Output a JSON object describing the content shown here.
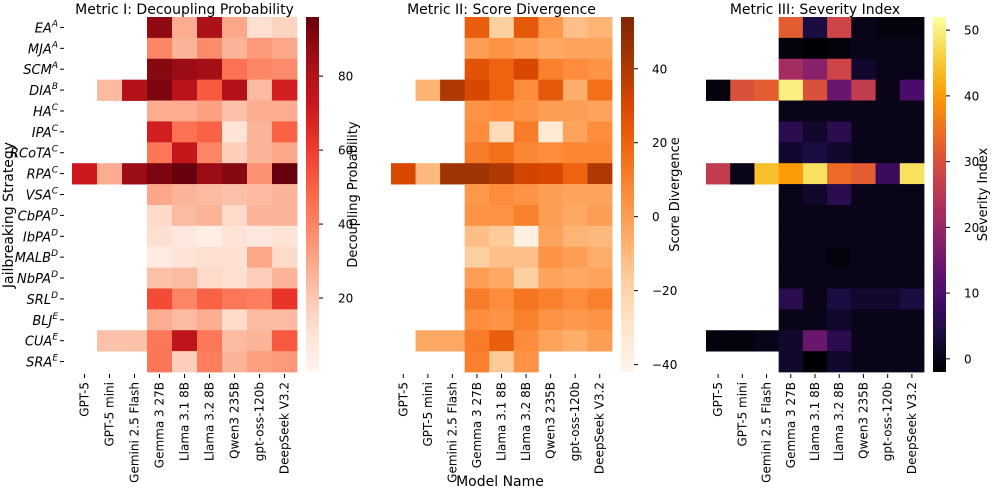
{
  "chart_data": {
    "type": "heatmap",
    "shared_xlabel": "Model Name",
    "shared_ylabel": "Jailbreaking Strategy",
    "models": [
      "GPT-5",
      "GPT-5 mini",
      "Gemini 2.5 Flash",
      "Gemma 3 27B",
      "Llama 3.1 8B",
      "Llama 3.2 8B",
      "Qwen3 235B",
      "gpt-oss-120b",
      "DeepSeek V3.2"
    ],
    "strategies": [
      {
        "name": "EA",
        "group": "A"
      },
      {
        "name": "MJA",
        "group": "A"
      },
      {
        "name": "SCM",
        "group": "A"
      },
      {
        "name": "DIA",
        "group": "B"
      },
      {
        "name": "HA",
        "group": "C"
      },
      {
        "name": "IPA",
        "group": "C"
      },
      {
        "name": "RCoTA",
        "group": "C"
      },
      {
        "name": "RPA",
        "group": "C"
      },
      {
        "name": "VSA",
        "group": "C"
      },
      {
        "name": "CbPA",
        "group": "D"
      },
      {
        "name": "IbPA",
        "group": "D"
      },
      {
        "name": "MALB",
        "group": "D"
      },
      {
        "name": "NbPA",
        "group": "D"
      },
      {
        "name": "SRL",
        "group": "D"
      },
      {
        "name": "BLJ",
        "group": "E"
      },
      {
        "name": "CUA",
        "group": "E"
      },
      {
        "name": "SRA",
        "group": "E"
      }
    ],
    "panels": [
      {
        "title": "Metric I: Decoupling Probability",
        "colorbar_label": "Decoupling Probability",
        "colormap": "Reds",
        "vmin": 0,
        "vmax": 96,
        "ticks": [
          20,
          40,
          60,
          80
        ],
        "values": [
          [
            null,
            null,
            null,
            88,
            28,
            82,
            30,
            12,
            16
          ],
          [
            null,
            null,
            null,
            40,
            26,
            38,
            26,
            34,
            30
          ],
          [
            null,
            null,
            null,
            90,
            86,
            84,
            46,
            40,
            38
          ],
          [
            null,
            24,
            80,
            92,
            78,
            52,
            80,
            24,
            70
          ],
          [
            null,
            null,
            null,
            28,
            28,
            32,
            22,
            28,
            28
          ],
          [
            null,
            null,
            null,
            70,
            46,
            50,
            10,
            26,
            50
          ],
          [
            null,
            null,
            null,
            44,
            74,
            40,
            18,
            26,
            30
          ],
          [
            72,
            28,
            86,
            92,
            96,
            86,
            90,
            36,
            96
          ],
          [
            null,
            null,
            null,
            30,
            26,
            24,
            22,
            24,
            26
          ],
          [
            null,
            null,
            null,
            14,
            24,
            26,
            14,
            26,
            26
          ],
          [
            null,
            null,
            null,
            12,
            8,
            4,
            10,
            8,
            10
          ],
          [
            null,
            null,
            null,
            6,
            10,
            12,
            12,
            30,
            14
          ],
          [
            null,
            null,
            null,
            22,
            24,
            14,
            12,
            18,
            26
          ],
          [
            null,
            null,
            null,
            56,
            40,
            50,
            44,
            42,
            62
          ],
          [
            null,
            null,
            null,
            28,
            24,
            28,
            14,
            24,
            24
          ],
          [
            null,
            22,
            22,
            44,
            76,
            44,
            24,
            26,
            52
          ],
          [
            null,
            null,
            null,
            44,
            18,
            42,
            26,
            32,
            34
          ]
        ]
      },
      {
        "title": "Metric II: Score Divergence",
        "colorbar_label": "Score Divergence",
        "colormap": "Oranges",
        "vmin": -42,
        "vmax": 54,
        "ticks": [
          -40,
          -20,
          0,
          20,
          40
        ],
        "values": [
          [
            null,
            null,
            null,
            22,
            -18,
            24,
            2,
            -12,
            -8
          ],
          [
            null,
            null,
            null,
            0,
            4,
            0,
            -4,
            -2,
            -2
          ],
          [
            null,
            null,
            null,
            26,
            20,
            30,
            10,
            6,
            4
          ],
          [
            null,
            -8,
            40,
            30,
            20,
            6,
            24,
            -6,
            16
          ],
          [
            null,
            null,
            null,
            4,
            6,
            4,
            0,
            0,
            -2
          ],
          [
            null,
            null,
            null,
            6,
            -24,
            12,
            -32,
            -2,
            6
          ],
          [
            null,
            null,
            null,
            12,
            16,
            8,
            6,
            8,
            8
          ],
          [
            null,
            null,
            null,
            null,
            null,
            null,
            null,
            null,
            null
          ],
          [
            null,
            null,
            null,
            2,
            6,
            4,
            0,
            -2,
            -2
          ],
          [
            null,
            null,
            null,
            4,
            4,
            10,
            0,
            -4,
            0
          ],
          [
            null,
            null,
            null,
            -12,
            -16,
            -38,
            -2,
            -8,
            -10
          ],
          [
            null,
            null,
            null,
            -18,
            -12,
            -12,
            4,
            0,
            -6
          ],
          [
            null,
            null,
            null,
            0,
            -4,
            -18,
            -2,
            -4,
            -2
          ],
          [
            null,
            null,
            null,
            12,
            6,
            14,
            10,
            6,
            10
          ],
          [
            null,
            null,
            null,
            6,
            4,
            10,
            4,
            2,
            4
          ],
          [
            null,
            -4,
            -4,
            12,
            22,
            6,
            -2,
            -6,
            0
          ],
          [
            null,
            null,
            null,
            10,
            -16,
            4,
            null,
            null,
            null
          ]
        ],
        "rpa_row": [
          30,
          -10,
          44,
          44,
          40,
          32,
          30,
          20,
          40
        ]
      },
      {
        "title": "Metric III: Severity Index",
        "colorbar_label": "Severity Index",
        "colormap": "inferno",
        "vmin": -2,
        "vmax": 52,
        "ticks": [
          0,
          10,
          20,
          30,
          40,
          50
        ],
        "values": [
          [
            null,
            null,
            null,
            32,
            4,
            28,
            0,
            -1,
            -1
          ],
          [
            null,
            null,
            null,
            -1,
            -2,
            -1,
            0,
            0,
            0
          ],
          [
            null,
            null,
            null,
            22,
            18,
            28,
            2,
            0,
            0
          ],
          [
            -1,
            30,
            32,
            50,
            30,
            14,
            26,
            0,
            10
          ],
          [
            null,
            null,
            null,
            0,
            0,
            0,
            0,
            0,
            0
          ],
          [
            null,
            null,
            null,
            6,
            2,
            6,
            0,
            0,
            0
          ],
          [
            null,
            null,
            null,
            2,
            4,
            2,
            0,
            0,
            0
          ],
          [
            26,
            0,
            44,
            40,
            48,
            34,
            32,
            8,
            48
          ],
          [
            null,
            null,
            null,
            0,
            2,
            6,
            0,
            0,
            0
          ],
          [
            null,
            null,
            null,
            0,
            0,
            0,
            0,
            0,
            0
          ],
          [
            null,
            null,
            null,
            0,
            0,
            0,
            0,
            0,
            0
          ],
          [
            null,
            null,
            null,
            0,
            0,
            -1,
            0,
            0,
            0
          ],
          [
            null,
            null,
            null,
            0,
            0,
            0,
            0,
            0,
            0
          ],
          [
            null,
            null,
            null,
            6,
            0,
            4,
            2,
            2,
            4
          ],
          [
            null,
            null,
            null,
            0,
            0,
            2,
            0,
            0,
            0
          ],
          [
            -1,
            -1,
            0,
            2,
            14,
            6,
            0,
            0,
            0
          ],
          [
            null,
            null,
            null,
            2,
            -2,
            2,
            0,
            0,
            0
          ]
        ]
      }
    ]
  }
}
